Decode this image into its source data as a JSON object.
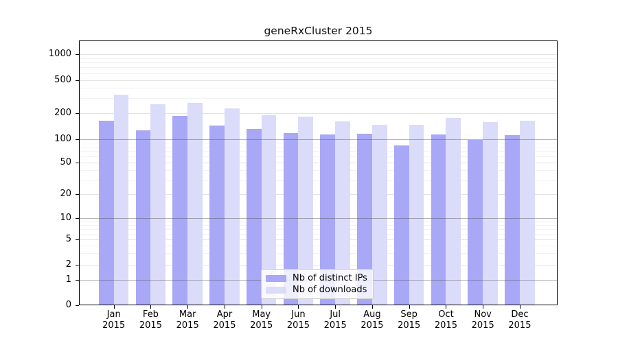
{
  "chart_data": {
    "type": "bar",
    "title": "geneRxCluster 2015",
    "year_label": "2015",
    "months": [
      "Jan",
      "Feb",
      "Mar",
      "Apr",
      "May",
      "Jun",
      "Jul",
      "Aug",
      "Sep",
      "Oct",
      "Nov",
      "Dec"
    ],
    "series": [
      {
        "name": "Nb of distinct IPs",
        "color": "#a8a8f6",
        "values": [
          162,
          126,
          183,
          143,
          130,
          117,
          112,
          114,
          82,
          113,
          97,
          110
        ]
      },
      {
        "name": "Nb of downloads",
        "color": "#dbdbfa",
        "values": [
          330,
          253,
          264,
          225,
          187,
          180,
          160,
          146,
          146,
          175,
          157,
          163
        ]
      }
    ],
    "y_axis": {
      "scale": "log-like",
      "tick_values": [
        0,
        1,
        2,
        5,
        10,
        20,
        50,
        100,
        200,
        500,
        1000
      ],
      "tick_labels": [
        "0",
        "1",
        "2",
        "5",
        "10",
        "20",
        "50",
        "100",
        "200",
        "500",
        "1000"
      ]
    },
    "minor_gridline_values": [
      3,
      4,
      6,
      7,
      8,
      9,
      30,
      40,
      60,
      70,
      80,
      90,
      300,
      400,
      600,
      700,
      800,
      900
    ],
    "decade_gridline_values": [
      1,
      10,
      100
    ],
    "grid": true,
    "legend_position": "lower center",
    "colors": {
      "decade_gridline": "#b3b3b3",
      "labeled_gridline": "#e3e3e3",
      "minor_gridline": "#f2f2f2",
      "axis": "#000000",
      "background": "#ffffff"
    }
  }
}
